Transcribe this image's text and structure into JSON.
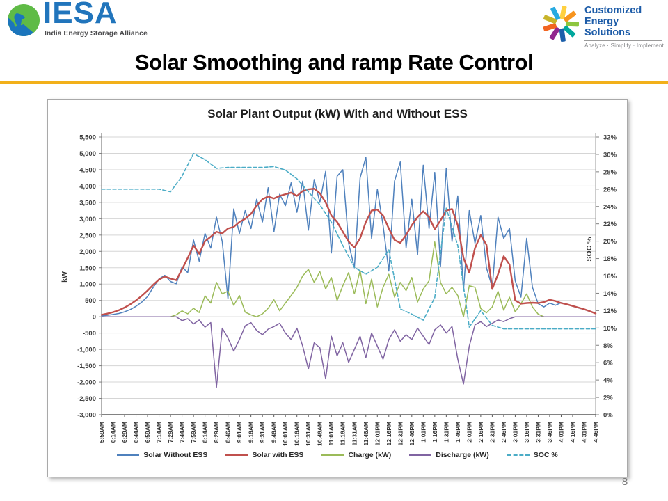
{
  "header": {
    "iesa": {
      "acronym": "IESA",
      "tagline": "India Energy Storage Alliance",
      "globe_icon": "globe-icon",
      "brand_blue": "#2175BC",
      "globe_green": "#5FBB46",
      "globe_blue": "#1B75BC"
    },
    "ces": {
      "line1": "Customized",
      "line2": "Energy Solutions",
      "tagline": "Analyze · Simplify · Implement",
      "pinwheel_icon": "pinwheel-icon",
      "text_blue": "#1D5CA8",
      "pinwheel_colors": [
        "#FFD040",
        "#F7941E",
        "#8DC63F",
        "#00A79D",
        "#1B5FAA",
        "#92278F",
        "#F26522",
        "#C8B42A",
        "#27AAE1"
      ]
    }
  },
  "slide": {
    "title": "Solar Smoothing and ramp Rate Control",
    "accent_color": "#F2B01A",
    "page_number": "8"
  },
  "chart_data": {
    "type": "line",
    "title": "Solar Plant Output (kW) With and Without ESS",
    "ylabel_left": "kW",
    "ylabel_right": "SOC %",
    "ylim_left": [
      -3000,
      5500
    ],
    "ytick_step_left": 500,
    "ylim_right": [
      0,
      32
    ],
    "ytick_step_right": 2,
    "grid": "horizontal-only",
    "legend_position": "bottom",
    "x_labels": [
      "5:59AM",
      "6:14AM",
      "6:29AM",
      "6:44AM",
      "6:59AM",
      "7:14AM",
      "7:29AM",
      "7:44AM",
      "7:59AM",
      "8:14AM",
      "8:29AM",
      "8:46AM",
      "9:01AM",
      "9:16AM",
      "9:31AM",
      "9:46AM",
      "10:01AM",
      "10:16AM",
      "10:31AM",
      "10:46AM",
      "11:01AM",
      "11:16AM",
      "11:31AM",
      "11:46AM",
      "12:01PM",
      "12:16PM",
      "12:31PM",
      "12:46PM",
      "1:01PM",
      "1:16PM",
      "1:31PM",
      "1:46PM",
      "2:01PM",
      "2:16PM",
      "2:31PM",
      "2:46PM",
      "3:01PM",
      "3:16PM",
      "3:31PM",
      "3:46PM",
      "4:01PM",
      "4:16PM",
      "4:31PM",
      "4:46PM"
    ],
    "series": [
      {
        "name": "Solar Without ESS",
        "color": "#4F81BD",
        "axis": "left",
        "style": "solid",
        "width": 1.5,
        "values": [
          30,
          45,
          70,
          100,
          150,
          220,
          320,
          450,
          620,
          900,
          1160,
          1270,
          1080,
          1010,
          1530,
          1350,
          2350,
          1700,
          2550,
          2100,
          3050,
          2300,
          550,
          3300,
          2550,
          3250,
          2700,
          3600,
          2900,
          3950,
          2600,
          3750,
          3400,
          4100,
          3200,
          4150,
          2650,
          4200,
          3500,
          4450,
          1950,
          4300,
          4500,
          2250,
          1500,
          4250,
          4880,
          2400,
          3900,
          2800,
          1400,
          4150,
          4740,
          2100,
          3600,
          1900,
          4640,
          2700,
          4420,
          1550,
          4550,
          2300,
          3700,
          800,
          3250,
          2250,
          3100,
          1500,
          900,
          3050,
          2400,
          2700,
          1100,
          600,
          2400,
          900,
          400,
          300,
          420,
          350,
          430,
          380,
          320,
          270,
          220,
          160,
          110
        ]
      },
      {
        "name": "Solar with ESS",
        "color": "#C0504D",
        "axis": "left",
        "style": "solid",
        "width": 2.4,
        "values": [
          60,
          95,
          140,
          200,
          280,
          380,
          500,
          640,
          800,
          980,
          1140,
          1230,
          1170,
          1120,
          1450,
          1800,
          2180,
          1930,
          2310,
          2450,
          2600,
          2550,
          2700,
          2750,
          2900,
          3000,
          3150,
          3400,
          3600,
          3680,
          3620,
          3700,
          3750,
          3800,
          3700,
          3850,
          3900,
          3920,
          3780,
          3500,
          3100,
          2900,
          2600,
          2300,
          2120,
          2400,
          2900,
          3250,
          3280,
          3100,
          2700,
          2350,
          2260,
          2500,
          2800,
          3050,
          3230,
          3050,
          2680,
          2950,
          3250,
          3300,
          2800,
          1800,
          1350,
          2100,
          2500,
          2200,
          850,
          1300,
          1850,
          1600,
          500,
          400,
          420,
          430,
          420,
          450,
          520,
          480,
          420,
          380,
          330,
          280,
          230,
          170,
          100
        ]
      },
      {
        "name": "Charge (kW)",
        "color": "#9BBB59",
        "axis": "left",
        "style": "solid",
        "width": 1.5,
        "values": [
          0,
          0,
          0,
          0,
          0,
          0,
          0,
          0,
          0,
          0,
          0,
          0,
          0,
          60,
          180,
          90,
          260,
          130,
          640,
          420,
          1050,
          700,
          780,
          350,
          650,
          140,
          60,
          0,
          90,
          260,
          520,
          180,
          420,
          650,
          900,
          1250,
          1450,
          1050,
          1380,
          850,
          1200,
          500,
          950,
          1350,
          700,
          1420,
          400,
          1150,
          300,
          900,
          1300,
          600,
          1050,
          800,
          1200,
          450,
          850,
          1100,
          2290,
          1050,
          700,
          900,
          650,
          0,
          950,
          900,
          250,
          120,
          300,
          780,
          200,
          600,
          150,
          400,
          700,
          300,
          80,
          0,
          0,
          0,
          0,
          0,
          0,
          0,
          0,
          0,
          0
        ]
      },
      {
        "name": "Discharge (kW)",
        "color": "#8064A2",
        "axis": "left",
        "style": "solid",
        "width": 1.5,
        "values": [
          0,
          0,
          0,
          0,
          0,
          0,
          0,
          0,
          0,
          0,
          0,
          0,
          0,
          0,
          -120,
          -60,
          -220,
          -100,
          -320,
          -180,
          -2160,
          -350,
          -650,
          -1050,
          -700,
          -280,
          -180,
          -420,
          -550,
          -380,
          -300,
          -200,
          -500,
          -700,
          -350,
          -900,
          -1600,
          -800,
          -950,
          -1900,
          -600,
          -1200,
          -800,
          -1400,
          -1000,
          -600,
          -1250,
          -500,
          -900,
          -1300,
          -700,
          -400,
          -750,
          -550,
          -700,
          -350,
          -600,
          -850,
          -400,
          -250,
          -500,
          -300,
          -1300,
          -2060,
          -900,
          -250,
          -150,
          -300,
          -200,
          -100,
          -150,
          -60,
          0,
          0,
          0,
          0,
          0,
          0,
          0,
          0,
          0,
          0,
          0,
          0,
          0,
          0,
          0
        ]
      },
      {
        "name": "SOC %",
        "color": "#4BACC6",
        "axis": "right",
        "style": "dashed",
        "width": 1.6,
        "values": [
          26,
          26,
          26,
          26,
          26,
          26,
          25.7,
          27.5,
          30.1,
          29.4,
          28.4,
          28.5,
          28.5,
          28.5,
          28.5,
          28.6,
          28.2,
          27.2,
          25.7,
          24.2,
          22.2,
          19.5,
          17.0,
          16.2,
          17.0,
          19.0,
          12.2,
          11.6,
          10.9,
          13.5,
          23.8,
          19.5,
          10.1,
          12.0,
          10.3,
          9.9,
          9.9,
          9.9,
          9.9,
          9.9,
          9.9,
          9.9,
          9.9,
          9.9
        ]
      }
    ]
  }
}
